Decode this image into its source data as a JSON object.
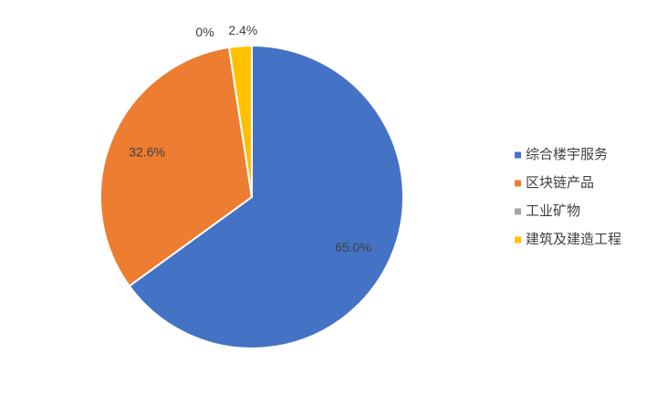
{
  "chart_data": {
    "type": "pie",
    "categories": [
      "综合楼宇服务",
      "区块链产品",
      "工业矿物",
      "建筑及建造工程"
    ],
    "values": [
      65.0,
      32.6,
      0,
      2.4
    ],
    "value_labels": [
      "65.0%",
      "32.6%",
      "0%",
      "2.4%"
    ],
    "colors": [
      "#4472c4",
      "#ed7d31",
      "#a5a5a5",
      "#ffc000"
    ],
    "legend": "right"
  }
}
